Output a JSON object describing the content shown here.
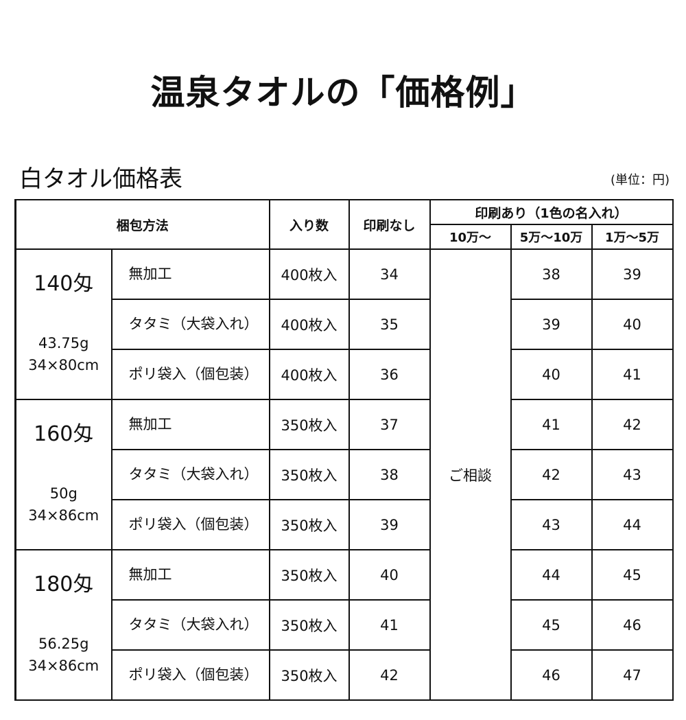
{
  "page_title": "温泉タオルの「価格例」",
  "table_title": "白タオル価格表",
  "unit_note": "(単位：円)",
  "headers": {
    "method": "梱包方法",
    "count": "入り数",
    "no_print": "印刷なし",
    "print_group": "印刷あり（1色の名入れ）",
    "tiers": [
      "10万〜",
      "5万〜10万",
      "1万〜5万"
    ]
  },
  "consult_label": "ご相談",
  "groups": [
    {
      "name": "140匁",
      "weight": "43.75g",
      "size": "34×80cm",
      "rows": [
        {
          "method": "無加工",
          "count": "400枚入",
          "no_print": "34",
          "p50k": "38",
          "p10k": "39"
        },
        {
          "method": "タタミ（大袋入れ）",
          "count": "400枚入",
          "no_print": "35",
          "p50k": "39",
          "p10k": "40"
        },
        {
          "method": "ポリ袋入（個包装）",
          "count": "400枚入",
          "no_print": "36",
          "p50k": "40",
          "p10k": "41"
        }
      ]
    },
    {
      "name": "160匁",
      "weight": "50g",
      "size": "34×86cm",
      "rows": [
        {
          "method": "無加工",
          "count": "350枚入",
          "no_print": "37",
          "p50k": "41",
          "p10k": "42"
        },
        {
          "method": "タタミ（大袋入れ）",
          "count": "350枚入",
          "no_print": "38",
          "p50k": "42",
          "p10k": "43"
        },
        {
          "method": "ポリ袋入（個包装）",
          "count": "350枚入",
          "no_print": "39",
          "p50k": "43",
          "p10k": "44"
        }
      ]
    },
    {
      "name": "180匁",
      "weight": "56.25g",
      "size": "34×86cm",
      "rows": [
        {
          "method": "無加工",
          "count": "350枚入",
          "no_print": "40",
          "p50k": "44",
          "p10k": "45"
        },
        {
          "method": "タタミ（大袋入れ）",
          "count": "350枚入",
          "no_print": "41",
          "p50k": "45",
          "p10k": "46"
        },
        {
          "method": "ポリ袋入（個包装）",
          "count": "350枚入",
          "no_print": "42",
          "p50k": "46",
          "p10k": "47"
        }
      ]
    }
  ]
}
